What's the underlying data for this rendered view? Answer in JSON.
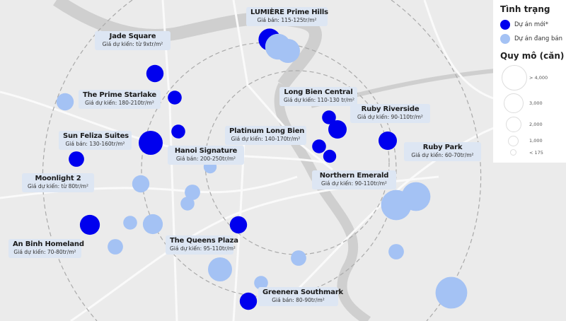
{
  "colors": {
    "new_project": "#0000ee",
    "selling_project": "#a4c2f4",
    "label_bg": "#dde6f3",
    "map_bg": "#ebebeb"
  },
  "legend": {
    "status_title": "Tình trạng",
    "status_items": [
      {
        "label": "Dự án mới*",
        "color": "#0000ee"
      },
      {
        "label": "Dự án đang bán",
        "color": "#a4c2f4"
      }
    ],
    "scale_title": "Quy mô (căn)",
    "scale_items": [
      "> 4,000",
      "3,000",
      "2,000",
      "1,000",
      "< 175"
    ]
  },
  "projects": [
    {
      "name": "LUMIÈRE Prime Hills",
      "price": "Giá bán: 115-125tr/m²"
    },
    {
      "name": "Jade Square",
      "price": "Giá dự kiến: từ 9xtr/m²"
    },
    {
      "name": "The Prime Starlake",
      "price": "Giá dự kiến: 180-210tr/m²"
    },
    {
      "name": "Sun Feliza Suites",
      "price": "Giá bán: 130-160tr/m²"
    },
    {
      "name": "Hanoi Signature",
      "price": "Giá bán: 200-250tr/m²"
    },
    {
      "name": "Platinum Long Bien",
      "price": "Giá dự kiến: 140-170tr/m²"
    },
    {
      "name": "Long Bien Central",
      "price": "Giá dự kiến: 110-130 tr/m²"
    },
    {
      "name": "Ruby Riverside",
      "price": "Giá dự kiến: 90-110tr/m²"
    },
    {
      "name": "Ruby Park",
      "price": "Giá dự kiến: 60-70tr/m²"
    },
    {
      "name": "Moonlight 2",
      "price": "Giá dự kiến: từ 80tr/m²"
    },
    {
      "name": "Northern Emerald",
      "price": "Giá dự kiến: 90-110tr/m²"
    },
    {
      "name": "An Binh Homeland",
      "price": "Giá dự kiến: 70-80tr/m²"
    },
    {
      "name": "The Queens Plaza",
      "price": "Giá dự kiến: 95-110tr/m²"
    },
    {
      "name": "Greenera Southmark",
      "price": "Giá bán: 80-90tr/m²"
    }
  ],
  "markers": [
    {
      "status": "new",
      "units": 2000
    },
    {
      "status": "new",
      "units": 1000
    },
    {
      "status": "new",
      "units": 500
    },
    {
      "status": "new",
      "units": 2500
    },
    {
      "status": "new",
      "units": 500
    },
    {
      "status": "new",
      "units": 700
    },
    {
      "status": "new",
      "units": 500
    },
    {
      "status": "new",
      "units": 1200
    },
    {
      "status": "new",
      "units": 500
    },
    {
      "status": "new",
      "units": 400
    },
    {
      "status": "new",
      "units": 1200
    },
    {
      "status": "new",
      "units": 1500
    },
    {
      "status": "new",
      "units": 1000
    },
    {
      "status": "new",
      "units": 1000
    },
    {
      "status": "selling",
      "units": 3000
    },
    {
      "status": "selling",
      "units": 2500
    },
    {
      "status": "selling",
      "units": 1000
    },
    {
      "status": "selling",
      "units": 1000
    },
    {
      "status": "selling",
      "units": 700
    },
    {
      "status": "selling",
      "units": 500
    },
    {
      "status": "selling",
      "units": 500
    },
    {
      "status": "selling",
      "units": 1500
    },
    {
      "status": "selling",
      "units": 700
    },
    {
      "status": "selling",
      "units": 2500
    },
    {
      "status": "selling",
      "units": 500
    },
    {
      "status": "selling",
      "units": 700
    },
    {
      "status": "selling",
      "units": 4500
    },
    {
      "status": "selling",
      "units": 4000
    },
    {
      "status": "selling",
      "units": 700
    },
    {
      "status": "selling",
      "units": 5000
    },
    {
      "status": "selling",
      "units": 400
    }
  ]
}
